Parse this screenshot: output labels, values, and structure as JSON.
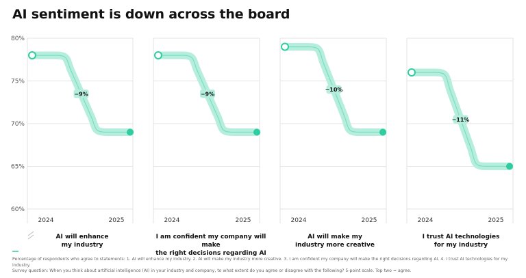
{
  "title": "AI sentiment is down across the board",
  "chart_data": {
    "type": "line",
    "ylim": [
      60,
      80
    ],
    "y_ticks": [
      "80%",
      "75%",
      "70%",
      "65%",
      "60%"
    ],
    "y_tick_values": [
      80,
      75,
      70,
      65,
      60
    ],
    "x": [
      "2024",
      "2025"
    ],
    "accent_color": "#2ecc9f",
    "band_color": "#b5eedd",
    "panels": [
      {
        "category": "AI will enhance my industry",
        "values": [
          78,
          69
        ],
        "change_label": "−9%"
      },
      {
        "category": "I am confident my company will make the right decisions regarding AI",
        "values": [
          78,
          69
        ],
        "change_label": "−9%"
      },
      {
        "category": "AI will make my industry more creative",
        "values": [
          79,
          69
        ],
        "change_label": "−10%"
      },
      {
        "category": "I trust AI technologies for my industry",
        "values": [
          76,
          65
        ],
        "change_label": "−11%"
      }
    ]
  },
  "category_lines": [
    [
      "AI will enhance",
      "my industry"
    ],
    [
      "I am confident my company will make",
      "the right decisions regarding AI"
    ],
    [
      "AI will make my",
      "industry more creative"
    ],
    [
      "I trust AI technologies",
      "for my industry"
    ]
  ],
  "footnote": {
    "line1": "Percentage of respondents who agree to statements: 1. AI will enhance my industry. 2. AI will make my industry more creative. 3. I am confident my company will make the right decisions regarding AI. 4. I trust AI technologies for my industry.",
    "line2": "Survey question: When you think about artificial intelligence (AI) in your industry and company, to what extent do you agree or disagree with the following? 5-point scale. Top two = agree."
  }
}
